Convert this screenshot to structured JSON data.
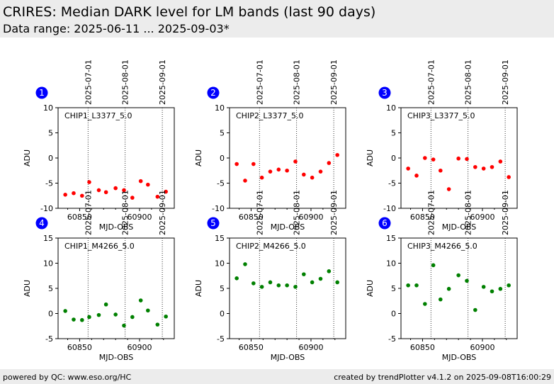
{
  "header": {
    "title": "CRIRES: Median DARK level for LM bands (last 90 days)",
    "subtitle": "Data range: 2025-06-11 ... 2025-09-03*"
  },
  "footer": {
    "left": "powered by QC: www.eso.org/HC",
    "right": "created by trendPlotter v4.1.2 on 2025-09-08T16:00:29"
  },
  "colors": {
    "red_series": "#ff0000",
    "green_series": "#008000",
    "badge": "#0000ff"
  },
  "chart_data": [
    {
      "type": "scatter",
      "panel_number": "1",
      "label": "CHIP1_L3377_5.0",
      "xlabel": "MJD-OBS",
      "ylabel": "ADU",
      "xlim": [
        60832,
        60929
      ],
      "ylim": [
        -10,
        10
      ],
      "yticks": [
        -10,
        -5,
        0,
        5,
        10
      ],
      "xticks": [
        60850,
        60900
      ],
      "color": "#ff0000",
      "date_lines": [
        {
          "x": 60857,
          "label": "2025-07-01"
        },
        {
          "x": 60888,
          "label": "2025-08-01"
        },
        {
          "x": 60919,
          "label": "2025-09-01"
        }
      ],
      "points": [
        {
          "x": 60838,
          "y": -7.3
        },
        {
          "x": 60845,
          "y": -7.0
        },
        {
          "x": 60852,
          "y": -7.5
        },
        {
          "x": 60858,
          "y": -4.8
        },
        {
          "x": 60866,
          "y": -6.4
        },
        {
          "x": 60872,
          "y": -6.8
        },
        {
          "x": 60880,
          "y": -6.0
        },
        {
          "x": 60887,
          "y": -6.4
        },
        {
          "x": 60894,
          "y": -7.9
        },
        {
          "x": 60901,
          "y": -4.6
        },
        {
          "x": 60907,
          "y": -5.3
        },
        {
          "x": 60915,
          "y": -7.7
        },
        {
          "x": 60922,
          "y": -6.7
        }
      ]
    },
    {
      "type": "scatter",
      "panel_number": "2",
      "label": "CHIP2_L3377_5.0",
      "xlabel": "MJD-OBS",
      "ylabel": "ADU",
      "xlim": [
        60832,
        60929
      ],
      "ylim": [
        -10,
        10
      ],
      "yticks": [
        -10,
        -5,
        0,
        5,
        10
      ],
      "xticks": [
        60850,
        60900
      ],
      "color": "#ff0000",
      "date_lines": [
        {
          "x": 60857,
          "label": "2025-07-01"
        },
        {
          "x": 60888,
          "label": "2025-08-01"
        },
        {
          "x": 60919,
          "label": "2025-09-01"
        }
      ],
      "points": [
        {
          "x": 60838,
          "y": -1.2
        },
        {
          "x": 60845,
          "y": -4.5
        },
        {
          "x": 60852,
          "y": -1.2
        },
        {
          "x": 60859,
          "y": -3.9
        },
        {
          "x": 60866,
          "y": -2.7
        },
        {
          "x": 60873,
          "y": -2.3
        },
        {
          "x": 60880,
          "y": -2.5
        },
        {
          "x": 60887,
          "y": -0.7
        },
        {
          "x": 60894,
          "y": -3.3
        },
        {
          "x": 60901,
          "y": -3.9
        },
        {
          "x": 60908,
          "y": -2.7
        },
        {
          "x": 60915,
          "y": -1.0
        },
        {
          "x": 60922,
          "y": 0.6
        }
      ]
    },
    {
      "type": "scatter",
      "panel_number": "3",
      "label": "CHIP3_L3377_5.0",
      "xlabel": "MJD-OBS",
      "ylabel": "ADU",
      "xlim": [
        60832,
        60929
      ],
      "ylim": [
        -10,
        10
      ],
      "yticks": [
        -10,
        -5,
        0,
        5,
        10
      ],
      "xticks": [
        60850,
        60900
      ],
      "color": "#ff0000",
      "date_lines": [
        {
          "x": 60857,
          "label": "2025-07-01"
        },
        {
          "x": 60888,
          "label": "2025-08-01"
        },
        {
          "x": 60919,
          "label": "2025-09-01"
        }
      ],
      "points": [
        {
          "x": 60838,
          "y": -2.1
        },
        {
          "x": 60845,
          "y": -3.5
        },
        {
          "x": 60852,
          "y": 0.0
        },
        {
          "x": 60859,
          "y": -0.3
        },
        {
          "x": 60865,
          "y": -2.5
        },
        {
          "x": 60872,
          "y": -6.2
        },
        {
          "x": 60880,
          "y": -0.1
        },
        {
          "x": 60887,
          "y": -0.2
        },
        {
          "x": 60894,
          "y": -1.8
        },
        {
          "x": 60901,
          "y": -2.1
        },
        {
          "x": 60908,
          "y": -1.8
        },
        {
          "x": 60915,
          "y": -0.7
        },
        {
          "x": 60922,
          "y": -3.8
        }
      ]
    },
    {
      "type": "scatter",
      "panel_number": "4",
      "label": "CHIP1_M4266_5.0",
      "xlabel": "MJD-OBS",
      "ylabel": "ADU",
      "xlim": [
        60832,
        60929
      ],
      "ylim": [
        -5,
        15
      ],
      "yticks": [
        -5,
        0,
        5,
        10,
        15
      ],
      "xticks": [
        60850,
        60900
      ],
      "color": "#008000",
      "date_lines": [
        {
          "x": 60857,
          "label": "2025-07-01"
        },
        {
          "x": 60888,
          "label": "2025-08-01"
        },
        {
          "x": 60919,
          "label": "2025-09-01"
        }
      ],
      "points": [
        {
          "x": 60838,
          "y": 0.5
        },
        {
          "x": 60845,
          "y": -1.2
        },
        {
          "x": 60852,
          "y": -1.3
        },
        {
          "x": 60858,
          "y": -0.7
        },
        {
          "x": 60866,
          "y": -0.3
        },
        {
          "x": 60872,
          "y": 1.8
        },
        {
          "x": 60880,
          "y": -0.2
        },
        {
          "x": 60887,
          "y": -2.4
        },
        {
          "x": 60894,
          "y": -0.7
        },
        {
          "x": 60901,
          "y": 2.6
        },
        {
          "x": 60907,
          "y": 0.6
        },
        {
          "x": 60915,
          "y": -2.2
        },
        {
          "x": 60922,
          "y": -0.6
        }
      ]
    },
    {
      "type": "scatter",
      "panel_number": "5",
      "label": "CHIP2_M4266_5.0",
      "xlabel": "MJD-OBS",
      "ylabel": "ADU",
      "xlim": [
        60832,
        60929
      ],
      "ylim": [
        -5,
        15
      ],
      "yticks": [
        -5,
        0,
        5,
        10,
        15
      ],
      "xticks": [
        60850,
        60900
      ],
      "color": "#008000",
      "date_lines": [
        {
          "x": 60857,
          "label": "2025-07-01"
        },
        {
          "x": 60888,
          "label": "2025-08-01"
        },
        {
          "x": 60919,
          "label": "2025-09-01"
        }
      ],
      "points": [
        {
          "x": 60838,
          "y": 7.0
        },
        {
          "x": 60845,
          "y": 9.8
        },
        {
          "x": 60852,
          "y": 6.0
        },
        {
          "x": 60859,
          "y": 5.3
        },
        {
          "x": 60866,
          "y": 6.2
        },
        {
          "x": 60873,
          "y": 5.6
        },
        {
          "x": 60880,
          "y": 5.6
        },
        {
          "x": 60887,
          "y": 5.3
        },
        {
          "x": 60894,
          "y": 7.8
        },
        {
          "x": 60901,
          "y": 6.2
        },
        {
          "x": 60908,
          "y": 6.9
        },
        {
          "x": 60915,
          "y": 8.4
        },
        {
          "x": 60922,
          "y": 6.2
        }
      ]
    },
    {
      "type": "scatter",
      "panel_number": "6",
      "label": "CHIP3_M4266_5.0",
      "xlabel": "MJD-OBS",
      "ylabel": "ADU",
      "xlim": [
        60832,
        60929
      ],
      "ylim": [
        -5,
        15
      ],
      "yticks": [
        -5,
        0,
        5,
        10,
        15
      ],
      "xticks": [
        60850,
        60900
      ],
      "color": "#008000",
      "date_lines": [
        {
          "x": 60857,
          "label": "2025-07-01"
        },
        {
          "x": 60888,
          "label": "2025-08-01"
        },
        {
          "x": 60919,
          "label": "2025-09-01"
        }
      ],
      "points": [
        {
          "x": 60838,
          "y": 5.6
        },
        {
          "x": 60845,
          "y": 5.6
        },
        {
          "x": 60852,
          "y": 1.9
        },
        {
          "x": 60859,
          "y": 9.6
        },
        {
          "x": 60865,
          "y": 2.8
        },
        {
          "x": 60872,
          "y": 4.9
        },
        {
          "x": 60880,
          "y": 7.6
        },
        {
          "x": 60887,
          "y": 6.5
        },
        {
          "x": 60894,
          "y": 0.7
        },
        {
          "x": 60901,
          "y": 5.3
        },
        {
          "x": 60908,
          "y": 4.4
        },
        {
          "x": 60915,
          "y": 4.9
        },
        {
          "x": 60922,
          "y": 5.6
        }
      ]
    }
  ]
}
